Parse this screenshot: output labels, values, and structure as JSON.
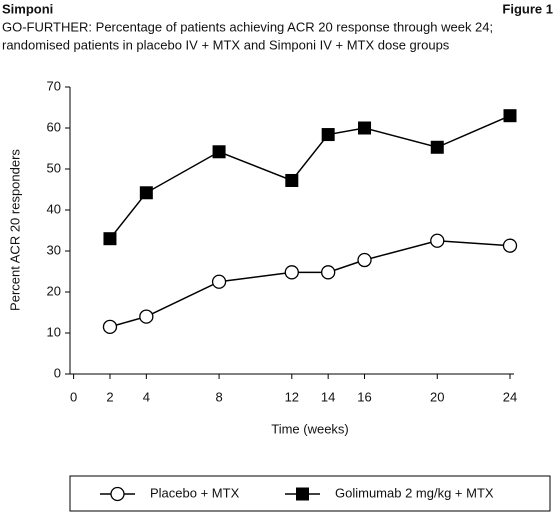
{
  "header": {
    "product": "Simponi",
    "figure": "Figure 1"
  },
  "chart_data": {
    "type": "line",
    "title": "GO-FURTHER: Percentage of patients achieving ACR 20 response through week 24;",
    "subtitle": "randomised patients in placebo IV + MTX and Simponi IV + MTX dose groups",
    "x_label": "Time (weeks)",
    "y_label": "Percent ACR 20 responders",
    "x": [
      2,
      4,
      8,
      12,
      14,
      16,
      20,
      24
    ],
    "series": [
      {
        "name": "Placebo + MTX",
        "color": "#000000",
        "marker": "open-circle",
        "values": [
          11.5,
          14,
          22.5,
          24.8,
          24.8,
          27.8,
          32.5,
          31.3
        ]
      },
      {
        "name": "Golimumab 2 mg/kg + MTX",
        "color": "#000000",
        "marker": "filled-square",
        "values": [
          33,
          44.2,
          54.2,
          47.2,
          58.4,
          60,
          55.3,
          63
        ]
      }
    ],
    "xlim": [
      0,
      24
    ],
    "xticks": [
      0,
      2,
      4,
      8,
      12,
      14,
      16,
      20,
      24
    ],
    "ylim": [
      0,
      70
    ],
    "yticks": [
      0,
      10,
      20,
      30,
      40,
      50,
      60,
      70
    ],
    "legend": "bottom"
  }
}
